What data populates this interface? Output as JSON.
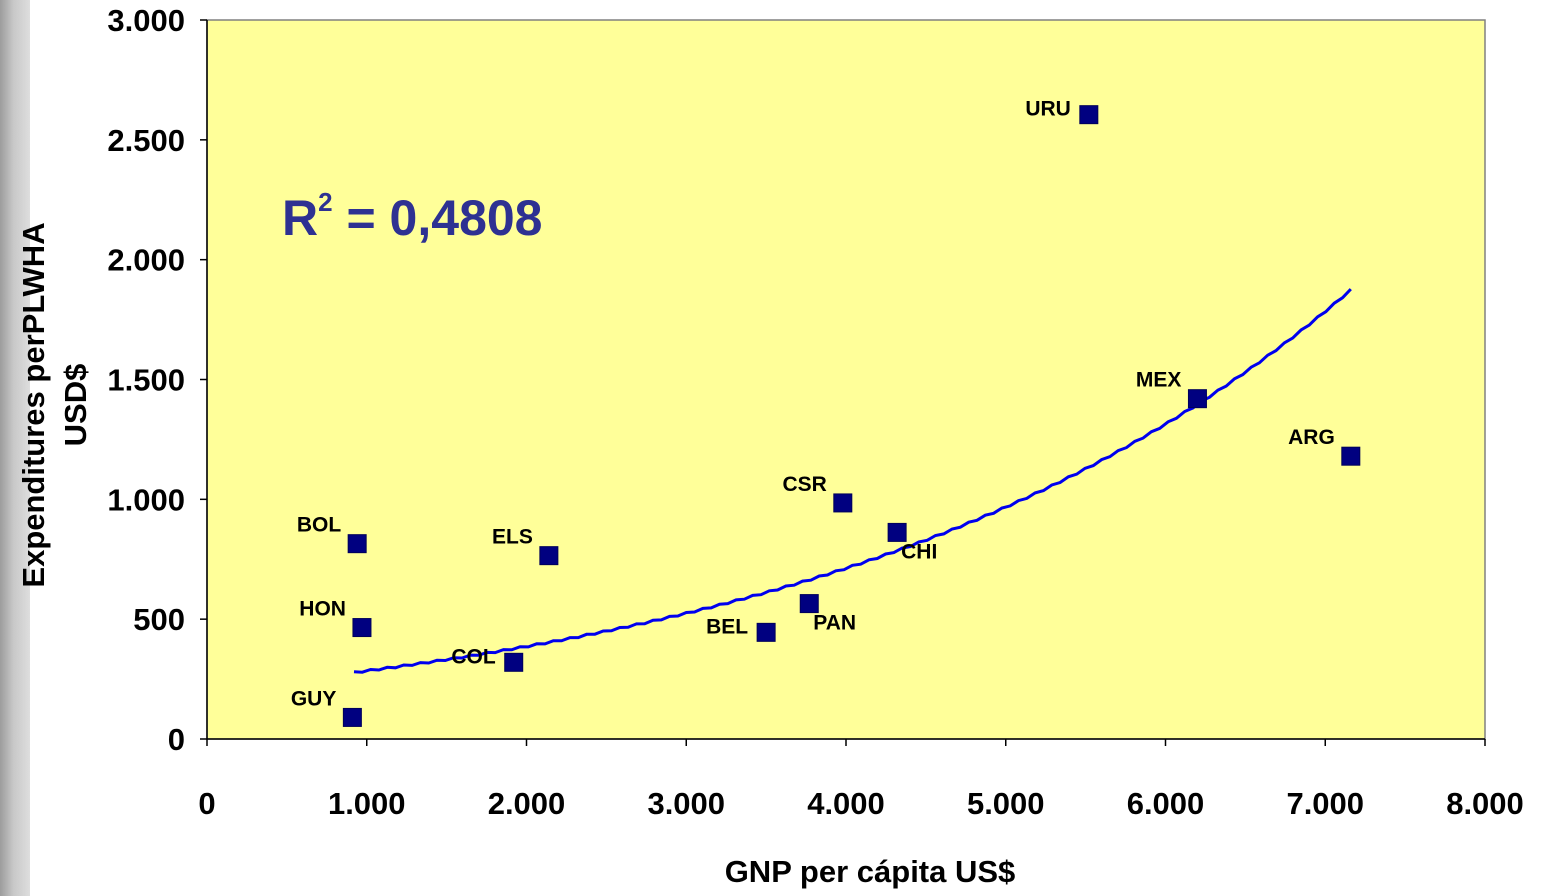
{
  "chart_data": {
    "type": "scatter",
    "xlabel": "GNP per cápita US$",
    "ylabel": "Expenditures perPLWHA USD$",
    "ylabel_lines": [
      "Expenditures perPLWHA",
      "USD$"
    ],
    "xlim": [
      0,
      8000
    ],
    "ylim": [
      0,
      3000
    ],
    "x_ticks": [
      0,
      1000,
      2000,
      3000,
      4000,
      5000,
      6000,
      7000,
      8000
    ],
    "x_tick_labels": [
      "0",
      "1.000",
      "2.000",
      "3.000",
      "4.000",
      "5.000",
      "6.000",
      "7.000",
      "8.000"
    ],
    "y_ticks": [
      0,
      500,
      1000,
      1500,
      2000,
      2500,
      3000
    ],
    "y_tick_labels": [
      "0",
      "500",
      "1.000",
      "1.500",
      "2.000",
      "2.500",
      "3.000"
    ],
    "grid": false,
    "plot_background": "#ffff99",
    "marker_color": "#000080",
    "trend_color": "#0000ee",
    "annotation": {
      "base": "R",
      "sup": "2",
      "text": " = 0,4808",
      "color": "#2e3192"
    },
    "points": [
      {
        "label": "URU",
        "x": 5520,
        "y": 2605,
        "label_side": "left"
      },
      {
        "label": "MEX",
        "x": 6200,
        "y": 1420,
        "label_side": "upper-left"
      },
      {
        "label": "ARG",
        "x": 7160,
        "y": 1180,
        "label_side": "upper-left"
      },
      {
        "label": "CSR",
        "x": 3980,
        "y": 985,
        "label_side": "upper-left"
      },
      {
        "label": "CHI",
        "x": 4320,
        "y": 862,
        "label_side": "below"
      },
      {
        "label": "BOL",
        "x": 940,
        "y": 815,
        "label_side": "upper-left"
      },
      {
        "label": "ELS",
        "x": 2140,
        "y": 765,
        "label_side": "upper-left"
      },
      {
        "label": "PAN",
        "x": 3770,
        "y": 565,
        "label_side": "below"
      },
      {
        "label": "BEL",
        "x": 3500,
        "y": 445,
        "label_side": "left"
      },
      {
        "label": "HON",
        "x": 970,
        "y": 465,
        "label_side": "upper-left"
      },
      {
        "label": "COL",
        "x": 1920,
        "y": 320,
        "label_side": "left"
      },
      {
        "label": "GUY",
        "x": 910,
        "y": 90,
        "label_side": "upper-left"
      }
    ],
    "trendline": {
      "type": "exponential",
      "x_range": [
        920,
        7160
      ],
      "a": 209.5,
      "b": 0.000306
    }
  }
}
